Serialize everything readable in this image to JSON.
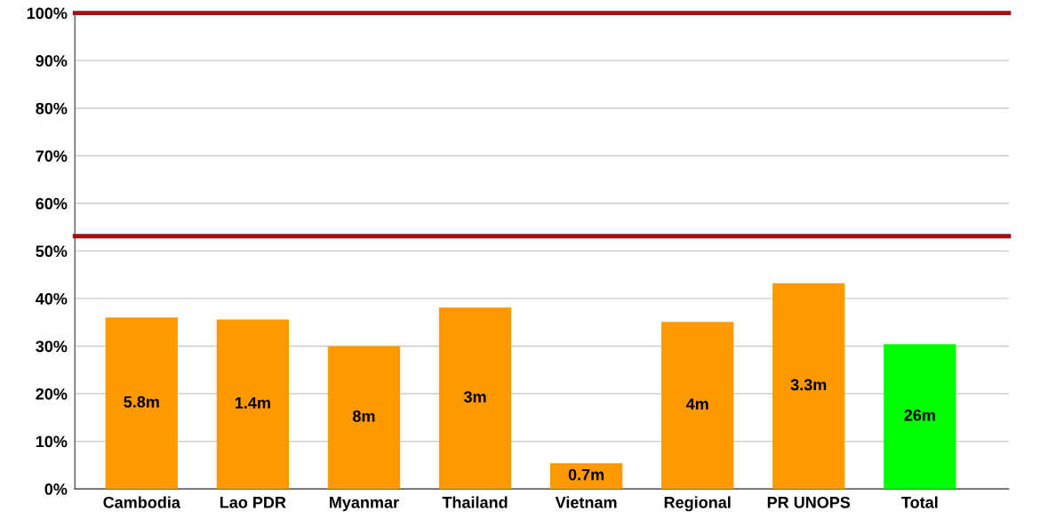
{
  "chart_data": {
    "type": "bar",
    "categories": [
      "Cambodia",
      "Lao PDR",
      "Myanmar",
      "Thailand",
      "Vietnam",
      "Regional",
      "PR UNOPS",
      "Total"
    ],
    "values": [
      36.0,
      35.6,
      30.0,
      38.1,
      5.4,
      35.1,
      43.2,
      30.4
    ],
    "colors": [
      "#ff9900",
      "#ff9900",
      "#ff9900",
      "#ff9900",
      "#ff9900",
      "#ff9900",
      "#ff9900",
      "#00ff00"
    ],
    "annotations": [
      "5.8m",
      "1.4m",
      "8m",
      "3m",
      "0.7m",
      "4m",
      "3.3m",
      "26m"
    ],
    "ylim": [
      0,
      100
    ],
    "yticks": [
      {
        "value": 0,
        "label": "0%"
      },
      {
        "value": 10,
        "label": "10%"
      },
      {
        "value": 20,
        "label": "20%"
      },
      {
        "value": 30,
        "label": "30%"
      },
      {
        "value": 40,
        "label": "40%"
      },
      {
        "value": 50,
        "label": "50%"
      },
      {
        "value": 60,
        "label": "60%"
      },
      {
        "value": 70,
        "label": "70%"
      },
      {
        "value": 80,
        "label": "80%"
      },
      {
        "value": 90,
        "label": "90%"
      },
      {
        "value": 100,
        "label": "100%"
      }
    ],
    "grid": "y",
    "ref_lines": [
      {
        "axis": "y",
        "value": 100,
        "color": "#a01010"
      },
      {
        "axis": "y",
        "value": 53.1,
        "color": "#a01010"
      }
    ]
  }
}
